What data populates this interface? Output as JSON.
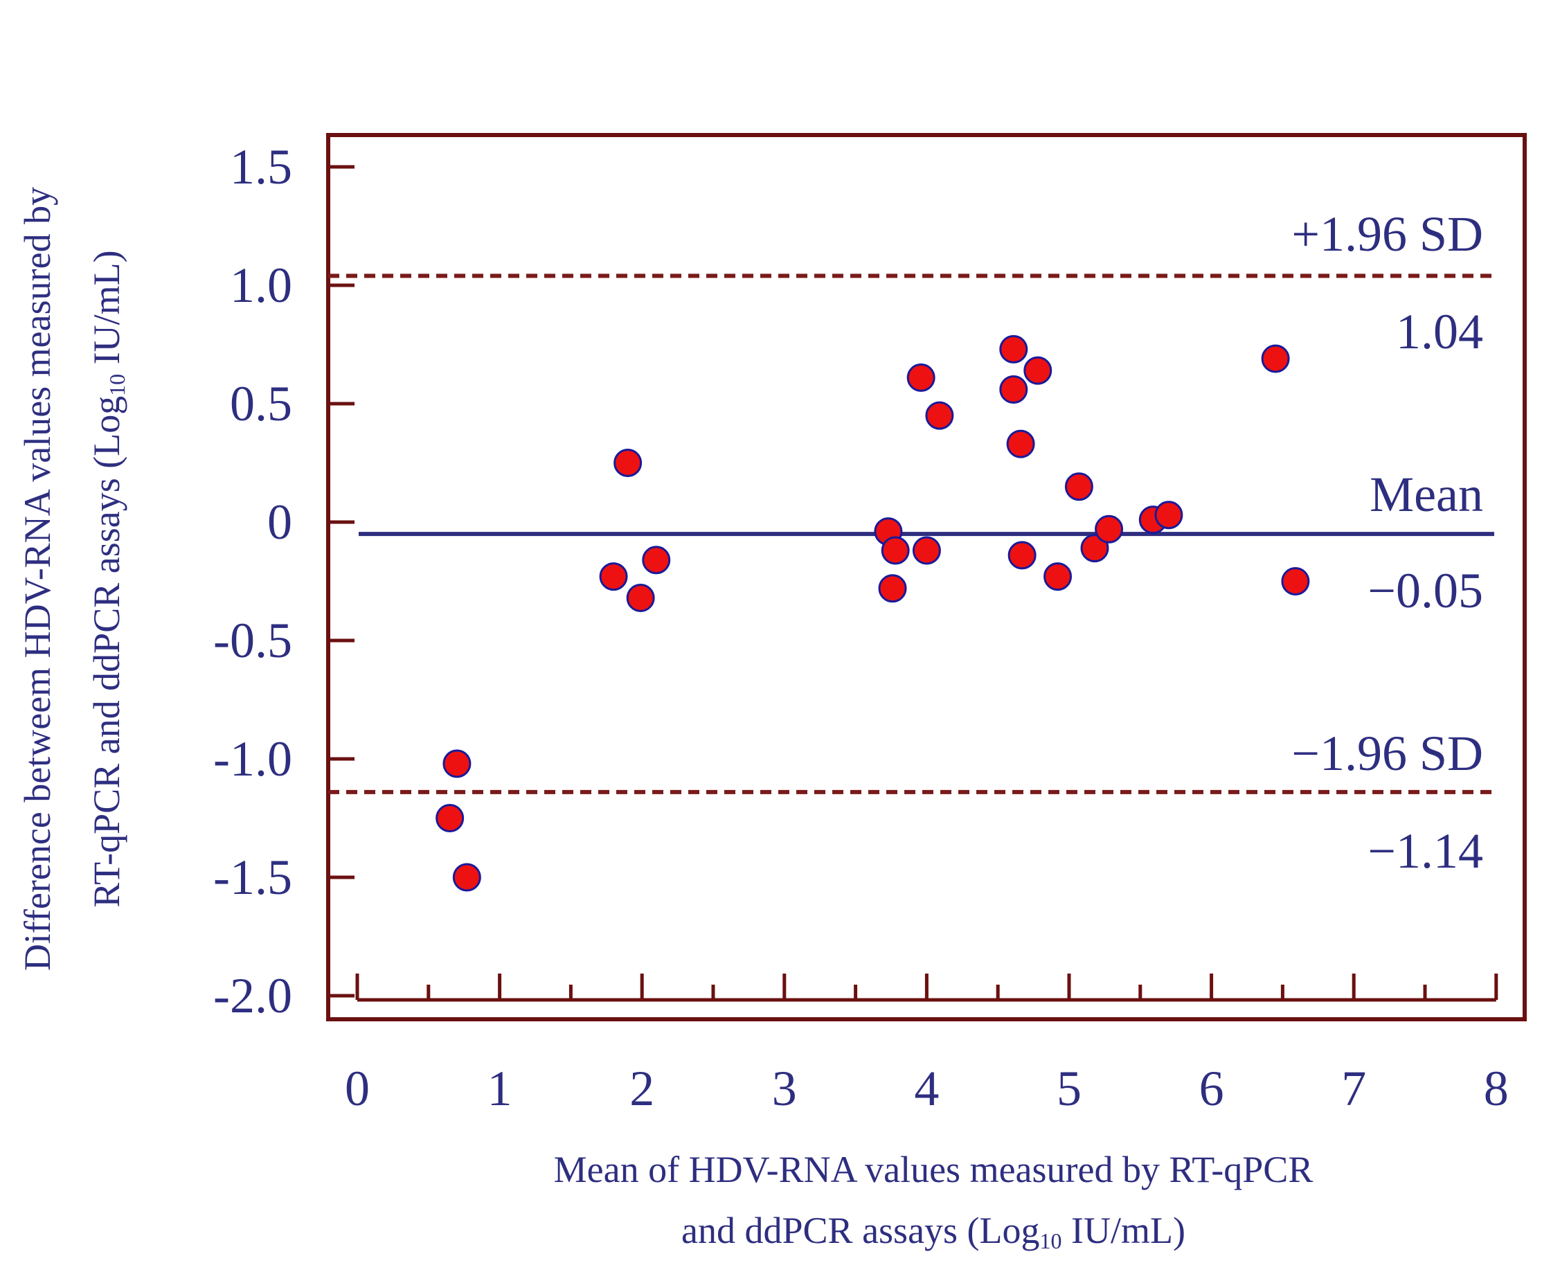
{
  "chart_data": {
    "type": "scatter",
    "title": "",
    "xlabel_line1": "Mean of HDV-RNA values measured by RT-qPCR",
    "xlabel_line2_pre": "and ddPCR assays (Log",
    "xlabel_line2_sub": "10",
    "xlabel_line2_post": " IU/mL)",
    "ylabel_line1": "Difference betweem HDV-RNA values measured by",
    "ylabel_line2_pre": "RT-qPCR and ddPCR assays (Log",
    "ylabel_line2_sub": "10",
    "ylabel_line2_post": " IU/mL)",
    "xlim": [
      0,
      8
    ],
    "ylim": [
      -2.0,
      1.5
    ],
    "xticks": [
      "0",
      "1",
      "2",
      "3",
      "4",
      "5",
      "6",
      "7",
      "8"
    ],
    "yticks": [
      "1.5",
      "1.0",
      "0.5",
      "0",
      "-0.5",
      "-1.0",
      "-1.5",
      "-2.0"
    ],
    "ytick_values": [
      1.5,
      1.0,
      0.5,
      0,
      -0.5,
      -1.0,
      -1.5,
      -2.0
    ],
    "mean_line": {
      "value": -0.05,
      "label": "Mean",
      "value_label": "−0.05"
    },
    "upper_loa": {
      "value": 1.04,
      "label": "+1.96 SD",
      "value_label": "1.04"
    },
    "lower_loa": {
      "value": -1.14,
      "label": "−1.96 SD",
      "value_label": "−1.14"
    },
    "points": [
      {
        "x": 0.65,
        "y": -1.25
      },
      {
        "x": 0.7,
        "y": -1.02
      },
      {
        "x": 0.77,
        "y": -1.5
      },
      {
        "x": 1.8,
        "y": -0.23
      },
      {
        "x": 1.9,
        "y": 0.25
      },
      {
        "x": 1.99,
        "y": -0.32
      },
      {
        "x": 2.1,
        "y": -0.16
      },
      {
        "x": 3.73,
        "y": -0.04
      },
      {
        "x": 3.78,
        "y": -0.12
      },
      {
        "x": 3.76,
        "y": -0.28
      },
      {
        "x": 3.96,
        "y": 0.61
      },
      {
        "x": 4.0,
        "y": -0.12
      },
      {
        "x": 4.09,
        "y": 0.45
      },
      {
        "x": 4.61,
        "y": 0.73
      },
      {
        "x": 4.61,
        "y": 0.56
      },
      {
        "x": 4.66,
        "y": 0.33
      },
      {
        "x": 4.67,
        "y": -0.14
      },
      {
        "x": 4.78,
        "y": 0.64
      },
      {
        "x": 4.92,
        "y": -0.23
      },
      {
        "x": 5.07,
        "y": 0.15
      },
      {
        "x": 5.18,
        "y": -0.11
      },
      {
        "x": 5.28,
        "y": -0.03
      },
      {
        "x": 5.59,
        "y": 0.01
      },
      {
        "x": 5.7,
        "y": 0.03
      },
      {
        "x": 6.45,
        "y": 0.69
      },
      {
        "x": 6.59,
        "y": -0.25
      }
    ],
    "colors": {
      "frame": "#6b1010",
      "axis_text": "#2e2e80",
      "mean_line": "#2e2e80",
      "loa_line": "#7a1a1a",
      "point_fill": "#ee1111",
      "point_stroke": "#1a1a99"
    }
  }
}
